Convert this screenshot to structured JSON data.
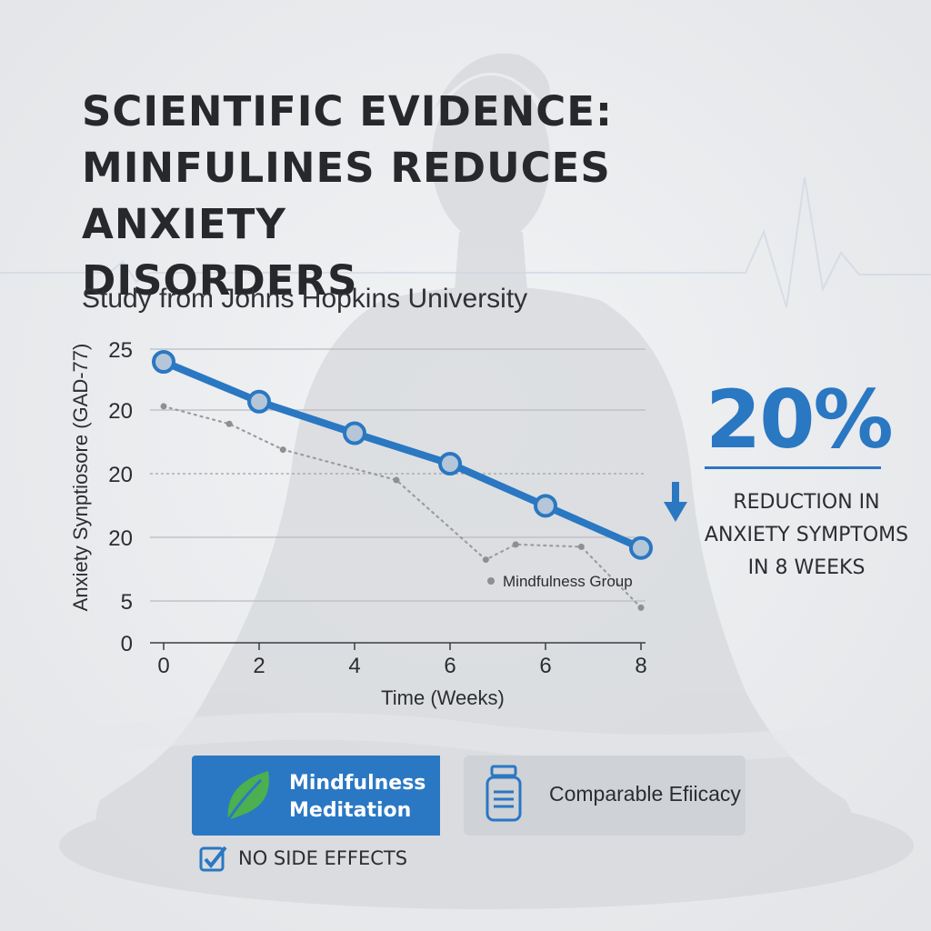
{
  "title_lines": [
    "SCIENTIFIC EVIDENCE:",
    "MINFULINES REDUCES ANXIETY",
    "DISORDERS"
  ],
  "subtitle": "Study from Johns Hopkins University",
  "chart_data": {
    "type": "line",
    "ylabel": "Anxiety Synptiosore (GAD-77)",
    "xlabel": "Time (Weeks)",
    "x_ticks": [
      "0",
      "2",
      "4",
      "6",
      "6",
      "8"
    ],
    "y_ticks": [
      "25",
      "20",
      "20",
      "20",
      "5",
      "0"
    ],
    "grid": true,
    "series": [
      {
        "values": [
          24,
          20.6,
          17.9,
          15.3,
          11.7,
          8.1
        ],
        "color": "#2a77c2",
        "style": "solid"
      },
      {
        "name": "Mindfulness Group",
        "values": [
          20.2,
          18.7,
          16.5,
          13.9,
          7.1,
          8.4,
          8.2,
          3.0
        ],
        "x": [
          0,
          1.1,
          2.0,
          3.9,
          5.4,
          5.9,
          7.0,
          8.0
        ],
        "color": "#9a9ca0",
        "style": "dotted"
      }
    ],
    "legend_position": "bottom-right"
  },
  "stat": {
    "value": "20%",
    "desc_lines": [
      "REDUCTION IN",
      "ANXIETY SYMPTOMS",
      "IN 8 WEEKS"
    ],
    "arrow_icon": "down-arrow-icon"
  },
  "cards": {
    "mindfulness": {
      "lines": [
        "Mindfulness",
        "Meditation"
      ],
      "icon": "leaf-icon",
      "color": "#2a78c4"
    },
    "medication": {
      "label": "Comparable Efiicacy",
      "icon": "pill-bottle-icon"
    }
  },
  "checklist": {
    "label": "NO SIDE EFFECTS",
    "icon": "checkbox-icon"
  },
  "colors": {
    "accent": "#2a77c2",
    "leaf": "#4caf50",
    "text": "#2b2d31"
  }
}
